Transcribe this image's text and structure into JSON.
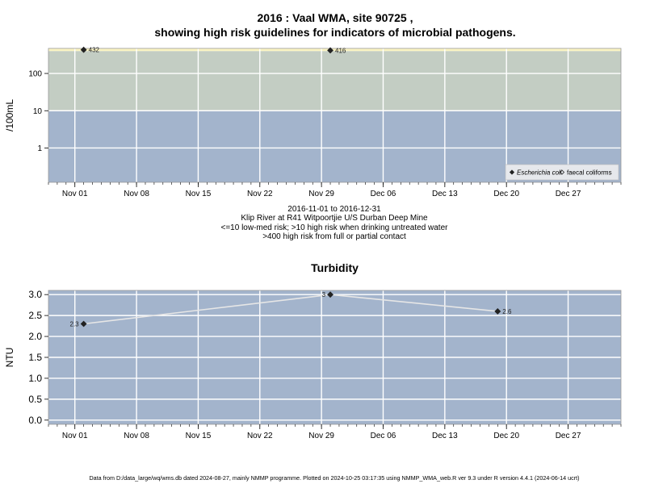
{
  "title_line1": "2016 : Vaal WMA, site 90725 ,",
  "title_line2": "showing high risk guidelines for indicators of microbial pathogens.",
  "caption": [
    "2016-11-01 to 2016-12-31",
    "Klip River at R41 Witpoortjie U/S Durban Deep Mine",
    "<=10 low-med risk; >10 high risk when drinking untreated water",
    ">400 high risk from full or partial contact"
  ],
  "footer": "Data from D:/data_large/wq/wms.db dated 2024-08-27, mainly NMMP programme. Plotted on 2024-10-25 03:17:35 using NMMP_WMA_web.R ver 9.3 under R version 4.4.1 (2024-06-14 ucrt)",
  "colors": {
    "band_low": "#a3b4cc",
    "band_mid": "#c3cdc3",
    "band_high": "#fbf4c2",
    "grid": "#ffffff",
    "line": "#e6e6e6",
    "marker": "#222222",
    "legend_bg": "#e6e8ec"
  },
  "chart_data": [
    {
      "type": "scatter",
      "title": "",
      "ylabel": "/100mL",
      "xlabel": "",
      "yscale": "log",
      "ylim": [
        0.12,
        470
      ],
      "xlim": [
        "2016-10-29",
        "2017-01-02"
      ],
      "yticks": [
        1,
        10,
        100
      ],
      "ytick_labels": [
        "1",
        "10",
        "100"
      ],
      "xticks": [
        "2016-11-01",
        "2016-11-08",
        "2016-11-15",
        "2016-11-22",
        "2016-11-29",
        "2016-12-06",
        "2016-12-13",
        "2016-12-20",
        "2016-12-27"
      ],
      "xtick_labels": [
        "Nov 01",
        "Nov 08",
        "Nov 15",
        "Nov 22",
        "Nov 29",
        "Dec 06",
        "Dec 13",
        "Dec 20",
        "Dec 27"
      ],
      "risk_bands": [
        10,
        400
      ],
      "grid": true,
      "legend_position": "bottom-right",
      "series": [
        {
          "name": "Escherichia coli",
          "marker": "diamond-filled",
          "points": [
            {
              "x": "2016-11-02",
              "y": 432,
              "label": "432"
            },
            {
              "x": "2016-11-30",
              "y": 416,
              "label": "416"
            }
          ]
        },
        {
          "name": "faecal coliforms",
          "marker": "diamond-open",
          "points": []
        }
      ]
    },
    {
      "type": "line",
      "title": "Turbidity",
      "ylabel": "NTU",
      "xlabel": "",
      "ylim": [
        -0.1,
        3.1
      ],
      "xlim": [
        "2016-10-29",
        "2017-01-02"
      ],
      "yticks": [
        0,
        0.5,
        1,
        1.5,
        2,
        2.5,
        3
      ],
      "ytick_labels": [
        "0.0",
        "0.5",
        "1.0",
        "1.5",
        "2.0",
        "2.5",
        "3.0"
      ],
      "xticks": [
        "2016-11-01",
        "2016-11-08",
        "2016-11-15",
        "2016-11-22",
        "2016-11-29",
        "2016-12-06",
        "2016-12-13",
        "2016-12-20",
        "2016-12-27"
      ],
      "xtick_labels": [
        "Nov 01",
        "Nov 08",
        "Nov 15",
        "Nov 22",
        "Nov 29",
        "Dec 06",
        "Dec 13",
        "Dec 20",
        "Dec 27"
      ],
      "grid": true,
      "series": [
        {
          "name": "",
          "points": [
            {
              "x": "2016-11-02",
              "y": 2.3,
              "label": "2.3",
              "label_side": "left"
            },
            {
              "x": "2016-11-30",
              "y": 3.0,
              "label": "3",
              "label_side": "left"
            },
            {
              "x": "2016-12-19",
              "y": 2.6,
              "label": "2.6",
              "label_side": "right"
            }
          ]
        }
      ]
    }
  ]
}
